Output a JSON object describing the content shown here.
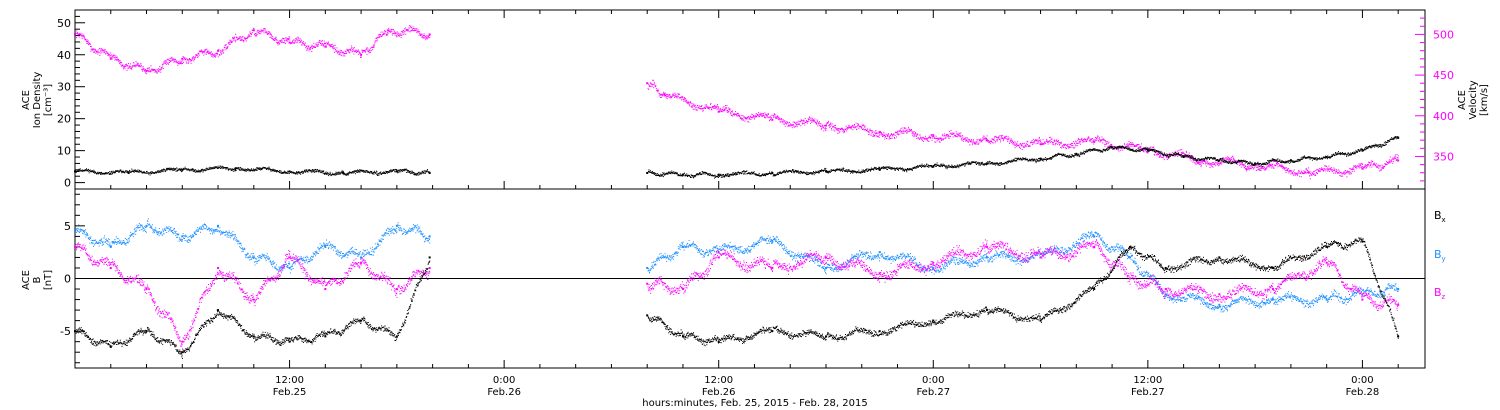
{
  "chart_data": [
    {
      "type": "scatter",
      "ylabel": "ACE\nIon Density\n[cm⁻³]",
      "y2label": "ACE\nVelocity\n[km/s]",
      "ylim": [
        -2,
        54
      ],
      "yticks": [
        0,
        10,
        20,
        30,
        40,
        50
      ],
      "y2lim": [
        310,
        530
      ],
      "y2ticks": [
        350,
        400,
        450,
        500
      ],
      "grid": false,
      "series": [
        {
          "color": "#000000",
          "axis": "left",
          "points": [
            [
              "2015-02-25T00:00",
              3.5
            ],
            [
              "2015-02-25T03:00",
              3.0
            ],
            [
              "2015-02-25T06:00",
              4.0
            ],
            [
              "2015-02-25T09:00",
              4.5
            ],
            [
              "2015-02-25T12:00",
              3.5
            ],
            [
              "2015-02-25T15:00",
              3.0
            ],
            [
              "2015-02-25T18:00",
              3.5
            ],
            [
              "2015-02-25T19:50",
              3.0
            ],
            [
              "2015-02-26T08:00",
              3.0
            ],
            [
              "2015-02-26T10:00",
              2.5
            ],
            [
              "2015-02-26T12:00",
              2.5
            ],
            [
              "2015-02-26T15:00",
              3.0
            ],
            [
              "2015-02-26T18:00",
              3.5
            ],
            [
              "2015-02-26T21:00",
              4.0
            ],
            [
              "2015-02-27T00:00",
              5.0
            ],
            [
              "2015-02-27T03:00",
              6.0
            ],
            [
              "2015-02-27T06:00",
              7.5
            ],
            [
              "2015-02-27T08:00",
              9.0
            ],
            [
              "2015-02-27T10:00",
              11.0
            ],
            [
              "2015-02-27T12:00",
              10.0
            ],
            [
              "2015-02-27T14:00",
              8.0
            ],
            [
              "2015-02-27T16:00",
              7.0
            ],
            [
              "2015-02-27T18:00",
              6.0
            ],
            [
              "2015-02-27T20:00",
              7.0
            ],
            [
              "2015-02-27T22:00",
              8.0
            ],
            [
              "2015-02-28T00:00",
              10.0
            ],
            [
              "2015-02-28T02:00",
              14.0
            ]
          ]
        },
        {
          "color": "#ff00ff",
          "axis": "right",
          "points": [
            [
              "2015-02-25T00:00",
              500
            ],
            [
              "2015-02-25T02:00",
              470
            ],
            [
              "2015-02-25T04:00",
              455
            ],
            [
              "2015-02-25T06:00",
              470
            ],
            [
              "2015-02-25T08:00",
              480
            ],
            [
              "2015-02-25T10:00",
              505
            ],
            [
              "2015-02-25T12:00",
              490
            ],
            [
              "2015-02-25T14:00",
              485
            ],
            [
              "2015-02-25T16:00",
              475
            ],
            [
              "2015-02-25T17:30",
              505
            ],
            [
              "2015-02-25T19:50",
              500
            ],
            [
              "2015-02-26T08:00",
              440
            ],
            [
              "2015-02-26T09:00",
              425
            ],
            [
              "2015-02-26T12:00",
              405
            ],
            [
              "2015-02-26T15:00",
              395
            ],
            [
              "2015-02-26T18:00",
              388
            ],
            [
              "2015-02-26T21:00",
              380
            ],
            [
              "2015-02-27T00:00",
              375
            ],
            [
              "2015-02-27T03:00",
              370
            ],
            [
              "2015-02-27T06:00",
              365
            ],
            [
              "2015-02-27T09:00",
              368
            ],
            [
              "2015-02-27T12:00",
              358
            ],
            [
              "2015-02-27T15:00",
              345
            ],
            [
              "2015-02-27T18:00",
              340
            ],
            [
              "2015-02-27T21:00",
              330
            ],
            [
              "2015-02-28T00:00",
              335
            ],
            [
              "2015-02-28T02:00",
              345
            ]
          ]
        }
      ]
    },
    {
      "type": "scatter",
      "ylabel": "ACE\nB\n[nT]",
      "ylim": [
        -8.5,
        8.5
      ],
      "yticks": [
        -5,
        0,
        5
      ],
      "zero_line": true,
      "grid": false,
      "legend_placement": "right",
      "series": [
        {
          "name": "Bx",
          "color": "#000000",
          "points": [
            [
              "2015-02-25T00:00",
              -5.0
            ],
            [
              "2015-02-25T02:00",
              -6.5
            ],
            [
              "2015-02-25T04:00",
              -5.0
            ],
            [
              "2015-02-25T06:00",
              -7.0
            ],
            [
              "2015-02-25T08:00",
              -3.0
            ],
            [
              "2015-02-25T10:00",
              -5.5
            ],
            [
              "2015-02-25T12:00",
              -6.0
            ],
            [
              "2015-02-25T14:00",
              -5.5
            ],
            [
              "2015-02-25T16:00",
              -4.0
            ],
            [
              "2015-02-25T18:00",
              -5.5
            ],
            [
              "2015-02-25T19:50",
              2.0
            ],
            [
              "2015-02-26T08:00",
              -3.5
            ],
            [
              "2015-02-26T10:00",
              -5.5
            ],
            [
              "2015-02-26T12:00",
              -6.0
            ],
            [
              "2015-02-26T15:00",
              -5.0
            ],
            [
              "2015-02-26T18:00",
              -5.5
            ],
            [
              "2015-02-26T21:00",
              -5.0
            ],
            [
              "2015-02-27T00:00",
              -4.0
            ],
            [
              "2015-02-27T03:00",
              -3.0
            ],
            [
              "2015-02-27T06:00",
              -4.0
            ],
            [
              "2015-02-27T09:00",
              -1.0
            ],
            [
              "2015-02-27T11:00",
              3.0
            ],
            [
              "2015-02-27T13:00",
              1.0
            ],
            [
              "2015-02-27T16:00",
              2.0
            ],
            [
              "2015-02-27T19:00",
              1.0
            ],
            [
              "2015-02-27T22:00",
              3.0
            ],
            [
              "2015-02-28T00:00",
              3.5
            ],
            [
              "2015-02-28T02:00",
              -5.5
            ]
          ]
        },
        {
          "name": "By",
          "color": "#1e90ff",
          "points": [
            [
              "2015-02-25T00:00",
              4.5
            ],
            [
              "2015-02-25T02:00",
              3.0
            ],
            [
              "2015-02-25T04:00",
              5.0
            ],
            [
              "2015-02-25T06:00",
              4.0
            ],
            [
              "2015-02-25T08:00",
              5.0
            ],
            [
              "2015-02-25T10:00",
              2.0
            ],
            [
              "2015-02-25T12:00",
              1.0
            ],
            [
              "2015-02-25T14:00",
              3.0
            ],
            [
              "2015-02-25T16:00",
              2.0
            ],
            [
              "2015-02-25T18:00",
              5.0
            ],
            [
              "2015-02-25T19:50",
              4.0
            ],
            [
              "2015-02-26T08:00",
              1.0
            ],
            [
              "2015-02-26T10:00",
              3.0
            ],
            [
              "2015-02-26T12:00",
              2.5
            ],
            [
              "2015-02-26T15:00",
              3.5
            ],
            [
              "2015-02-26T18:00",
              1.0
            ],
            [
              "2015-02-26T21:00",
              2.5
            ],
            [
              "2015-02-27T00:00",
              1.0
            ],
            [
              "2015-02-27T03:00",
              2.0
            ],
            [
              "2015-02-27T06:00",
              2.0
            ],
            [
              "2015-02-27T09:00",
              4.0
            ],
            [
              "2015-02-27T11:00",
              2.0
            ],
            [
              "2015-02-27T13:00",
              -1.5
            ],
            [
              "2015-02-27T16:00",
              -2.5
            ],
            [
              "2015-02-27T19:00",
              -2.0
            ],
            [
              "2015-02-27T22:00",
              -2.0
            ],
            [
              "2015-02-28T00:00",
              -1.5
            ],
            [
              "2015-02-28T02:00",
              -1.0
            ]
          ]
        },
        {
          "name": "Bz",
          "color": "#ff00ff",
          "points": [
            [
              "2015-02-25T00:00",
              3.0
            ],
            [
              "2015-02-25T02:00",
              1.0
            ],
            [
              "2015-02-25T04:00",
              -1.0
            ],
            [
              "2015-02-25T06:00",
              -6.0
            ],
            [
              "2015-02-25T08:00",
              1.0
            ],
            [
              "2015-02-25T10:00",
              -2.0
            ],
            [
              "2015-02-25T12:00",
              2.0
            ],
            [
              "2015-02-25T14:00",
              -1.0
            ],
            [
              "2015-02-25T16:00",
              1.5
            ],
            [
              "2015-02-25T18:00",
              -1.0
            ],
            [
              "2015-02-25T19:50",
              1.0
            ],
            [
              "2015-02-26T08:00",
              -0.5
            ],
            [
              "2015-02-26T10:00",
              -1.0
            ],
            [
              "2015-02-26T12:00",
              2.0
            ],
            [
              "2015-02-26T15:00",
              1.0
            ],
            [
              "2015-02-26T18:00",
              2.0
            ],
            [
              "2015-02-26T21:00",
              0.5
            ],
            [
              "2015-02-27T00:00",
              1.5
            ],
            [
              "2015-02-27T03:00",
              3.0
            ],
            [
              "2015-02-27T06:00",
              2.0
            ],
            [
              "2015-02-27T09:00",
              3.0
            ],
            [
              "2015-02-27T11:00",
              0.0
            ],
            [
              "2015-02-27T13:00",
              -1.0
            ],
            [
              "2015-02-27T16:00",
              -1.5
            ],
            [
              "2015-02-27T19:00",
              -1.0
            ],
            [
              "2015-02-27T22:00",
              1.5
            ],
            [
              "2015-02-28T00:00",
              -2.0
            ],
            [
              "2015-02-28T02:00",
              -2.5
            ]
          ]
        }
      ]
    }
  ],
  "x_axis": {
    "range": [
      "2015-02-25T00:00",
      "2015-02-28T03:30"
    ],
    "ticks": [
      {
        "at": "2015-02-25T12:00",
        "line1": "12:00",
        "line2": "Feb.25"
      },
      {
        "at": "2015-02-26T00:00",
        "line1": "0:00",
        "line2": "Feb.26"
      },
      {
        "at": "2015-02-26T12:00",
        "line1": "12:00",
        "line2": "Feb.26"
      },
      {
        "at": "2015-02-27T00:00",
        "line1": "0:00",
        "line2": "Feb.27"
      },
      {
        "at": "2015-02-27T12:00",
        "line1": "12:00",
        "line2": "Feb.27"
      },
      {
        "at": "2015-02-28T00:00",
        "line1": "0:00",
        "line2": "Feb.28"
      }
    ],
    "label": "hours:minutes, Feb. 25, 2015 - Feb. 28, 2015"
  }
}
